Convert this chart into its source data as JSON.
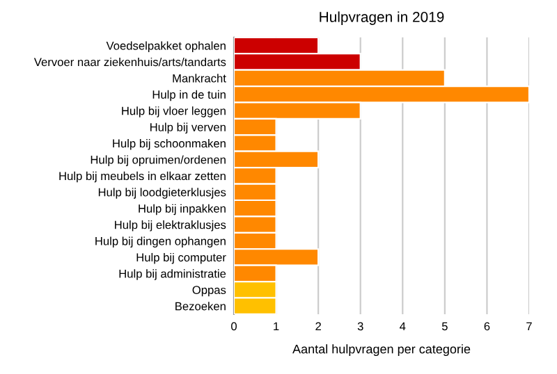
{
  "chart_data": {
    "type": "bar",
    "orientation": "horizontal",
    "title": "Hulpvragen in 2019",
    "xlabel": "Aantal hulpvragen per categorie",
    "categories": [
      "Voedselpakket ophalen",
      "Vervoer naar ziekenhuis/arts/tandarts",
      "Mankracht",
      "Hulp in de tuin",
      "Hulp bij vloer leggen",
      "Hulp bij verven",
      "Hulp bij schoonmaken",
      "Hulp bij opruimen/ordenen",
      "Hulp bij meubels in elkaar zetten",
      "Hulp bij loodgieterklusjes",
      "Hulp bij inpakken",
      "Hulp bij elektraklusjes",
      "Hulp bij dingen ophangen",
      "Hulp bij computer",
      "Hulp bij administratie",
      "Oppas",
      "Bezoeken"
    ],
    "values": [
      2,
      3,
      5,
      7,
      3,
      1,
      1,
      2,
      1,
      1,
      1,
      1,
      1,
      2,
      1,
      1,
      1
    ],
    "colors": [
      "#cc0000",
      "#cc0000",
      "#ff8800",
      "#ff8800",
      "#ff8800",
      "#ff8800",
      "#ff8800",
      "#ff8800",
      "#ff8800",
      "#ff8800",
      "#ff8800",
      "#ff8800",
      "#ff8800",
      "#ff8800",
      "#ff8800",
      "#ffc000",
      "#ffc000"
    ],
    "xlim": [
      0,
      7
    ],
    "xticks": [
      0,
      1,
      2,
      3,
      4,
      5,
      6,
      7
    ],
    "grid": "x"
  }
}
